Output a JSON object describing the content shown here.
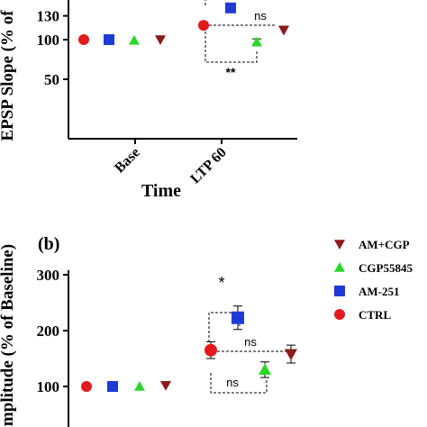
{
  "chart_data": [
    {
      "type": "scatter",
      "panel_label": "",
      "ylabel": "EPSP Slope (% of",
      "xlabel": "Time",
      "categories": [
        "Base",
        "LTP 60"
      ],
      "yticks": [
        "50",
        "100",
        "130"
      ],
      "ylim": [
        35,
        135
      ],
      "error_bars": true,
      "series": [
        {
          "name": "CTRL",
          "color": "#e31a1c",
          "marker": "circle",
          "values": [
            100,
            118
          ],
          "errors": [
            0,
            4
          ]
        },
        {
          "name": "AM-251",
          "color": "#1f3bd6",
          "marker": "square",
          "values": [
            100,
            140
          ],
          "errors": [
            0,
            4
          ]
        },
        {
          "name": "CGP55845",
          "color": "#2bd62b",
          "marker": "triangle-up",
          "values": [
            99,
            97
          ],
          "errors": [
            0,
            4
          ]
        },
        {
          "name": "AM+CGP",
          "color": "#8b1a1a",
          "marker": "triangle-down",
          "values": [
            100,
            112
          ],
          "errors": [
            0,
            5
          ]
        }
      ],
      "annotations": [
        {
          "text": "ns",
          "between": [
            "CTRL",
            "AM+CGP"
          ]
        },
        {
          "text": "**",
          "between": [
            "CTRL",
            "CGP55845"
          ]
        }
      ]
    },
    {
      "type": "scatter",
      "panel_label": "(b)",
      "ylabel": "mplitude (% of Baseline)",
      "yticks": [
        "100",
        "200",
        "300"
      ],
      "ylim": [
        40,
        310
      ],
      "error_bars": true,
      "legend_position": "top-right",
      "series": [
        {
          "name": "AM+CGP",
          "color": "#8b1a1a",
          "marker": "triangle-down",
          "values": [
            102,
            158
          ],
          "errors": [
            0,
            16
          ]
        },
        {
          "name": "CGP55845",
          "color": "#2bd62b",
          "marker": "triangle-up",
          "values": [
            100,
            130
          ],
          "errors": [
            0,
            14
          ]
        },
        {
          "name": "AM-251",
          "color": "#1f3bd6",
          "marker": "square",
          "values": [
            100,
            223
          ],
          "errors": [
            0,
            21
          ]
        },
        {
          "name": "CTRL",
          "color": "#e31a1c",
          "marker": "circle",
          "values": [
            100,
            165
          ],
          "errors": [
            0,
            15
          ]
        }
      ],
      "annotations": [
        {
          "text": "*",
          "between": [
            "CTRL",
            "AM-251"
          ]
        },
        {
          "text": "ns",
          "between": [
            "CTRL",
            "AM+CGP"
          ]
        },
        {
          "text": "ns",
          "between": [
            "CTRL",
            "CGP55845"
          ]
        }
      ]
    }
  ]
}
